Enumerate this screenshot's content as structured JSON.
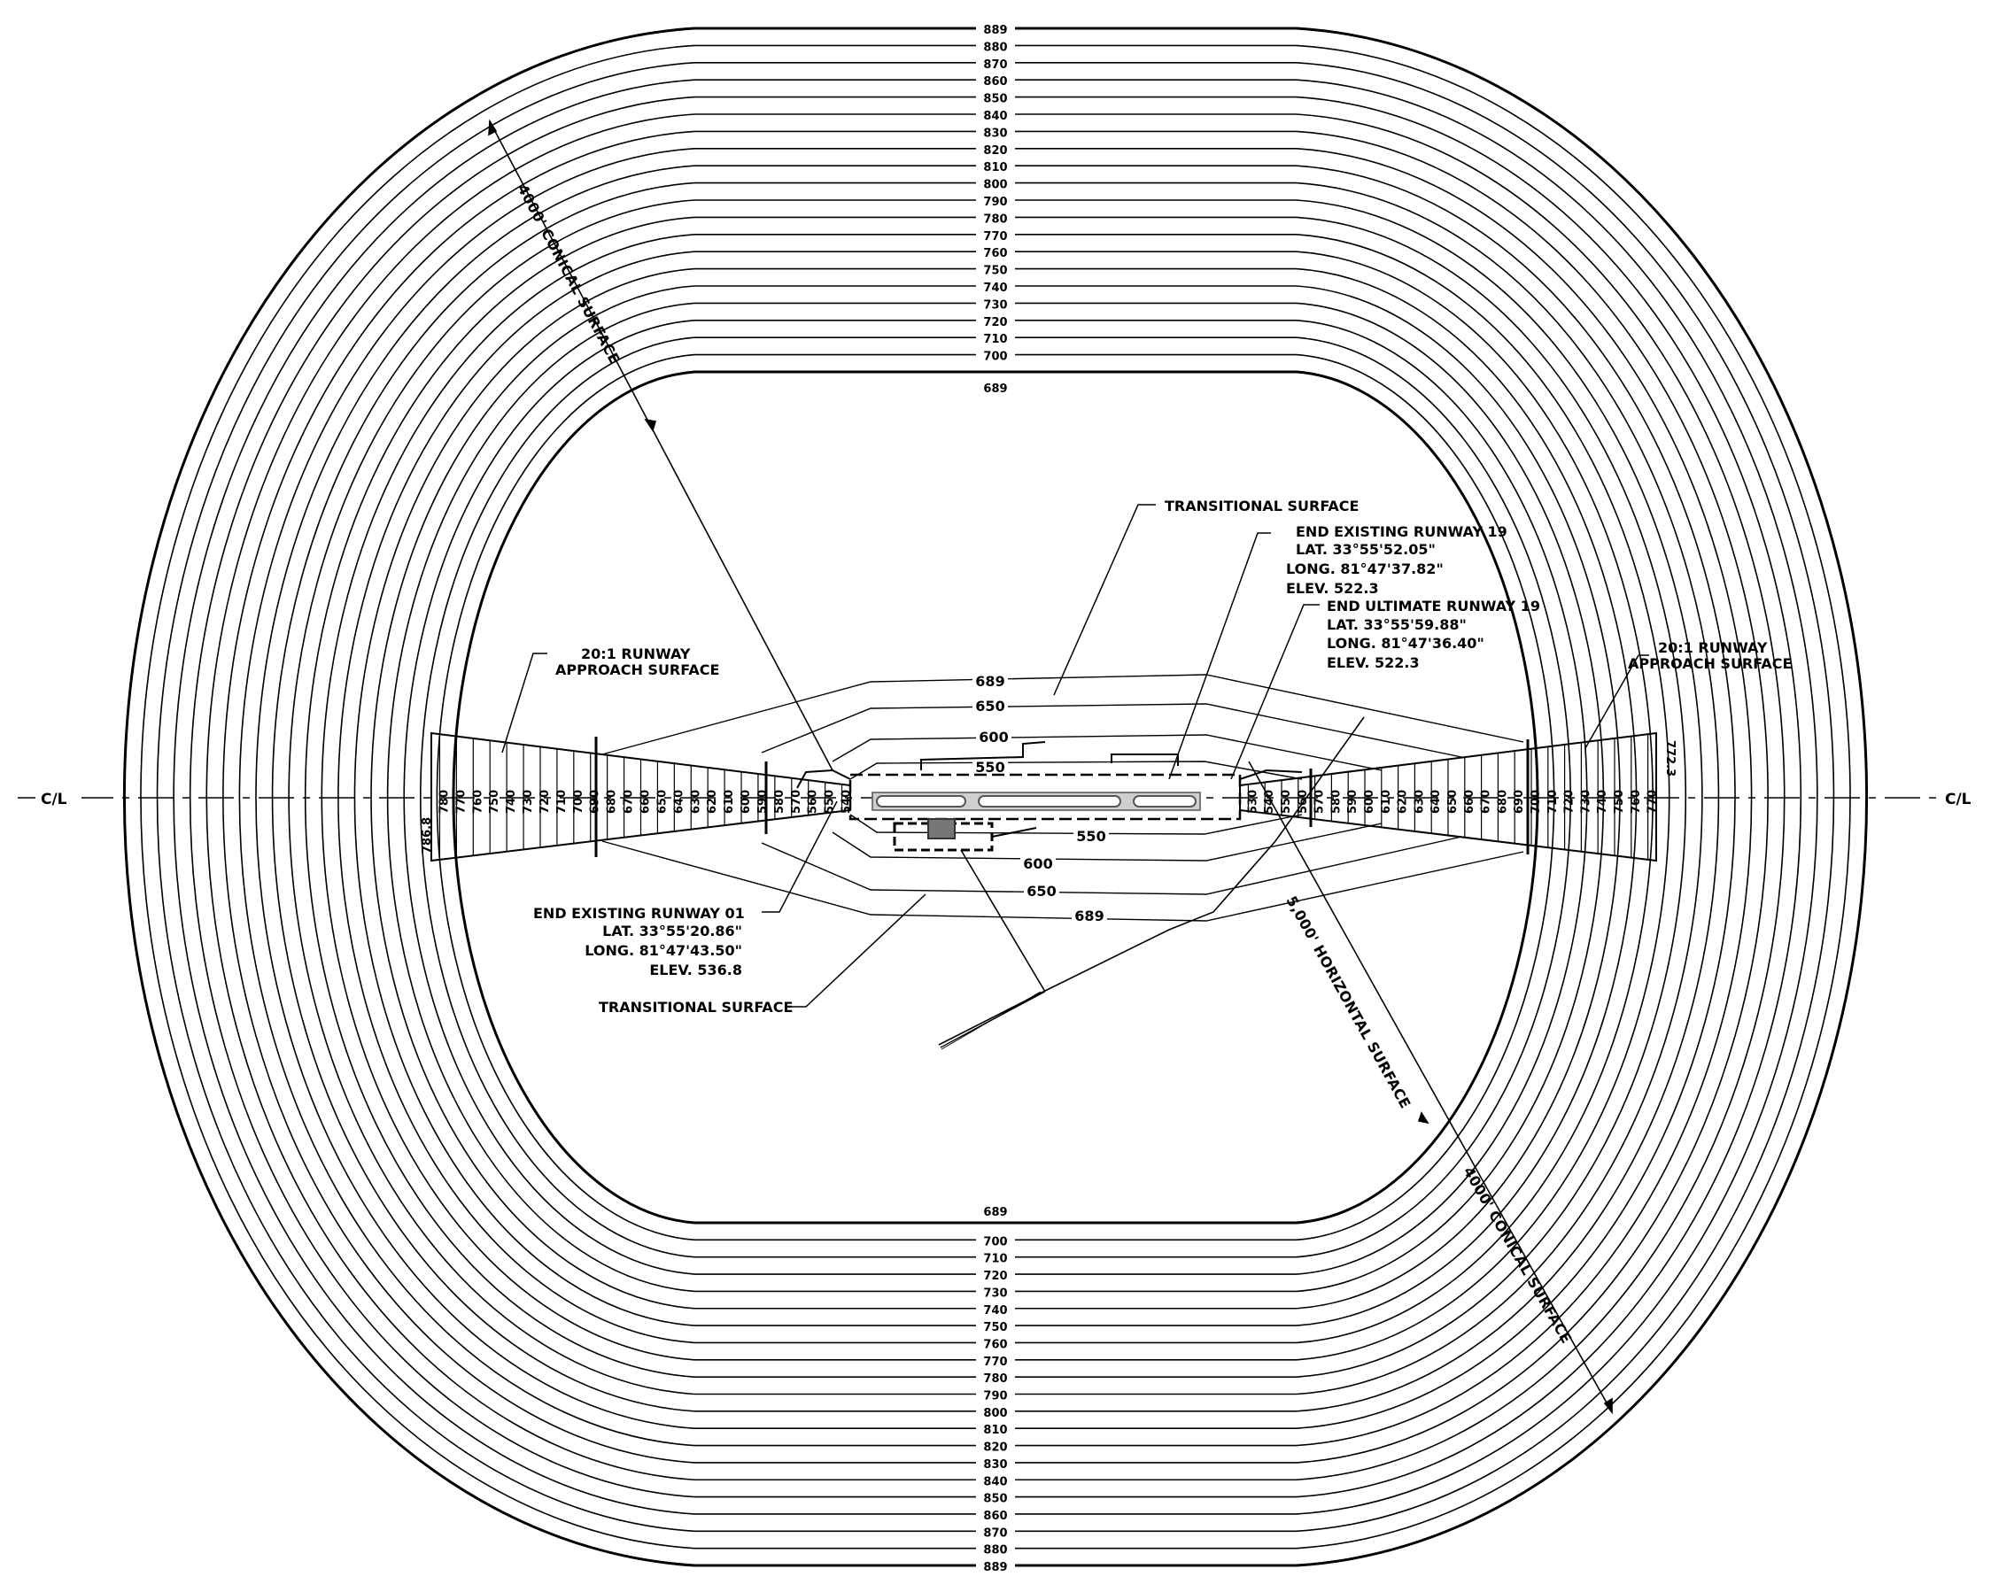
{
  "conical": {
    "outer": "889",
    "inner": "689",
    "contours": [
      "880",
      "870",
      "860",
      "850",
      "840",
      "830",
      "820",
      "810",
      "800",
      "790",
      "780",
      "770",
      "760",
      "750",
      "740",
      "730",
      "720",
      "710",
      "700"
    ]
  },
  "centerline": {
    "left": "C/L",
    "right": "C/L"
  },
  "dimensions": {
    "conical_nw": "4000' CONICAL SURFACE",
    "conical_se": "4000' CONICAL SURFACE",
    "horizontal": "5,000' HORIZONTAL SURFACE"
  },
  "transitional_contours": [
    "689",
    "650",
    "600",
    "550"
  ],
  "transitional_contours_south": [
    "550",
    "600",
    "650",
    "689"
  ],
  "approach_left": {
    "label_line1": "20:1 RUNWAY",
    "label_line2": "APPROACH SURFACE",
    "end_elev": "786.8",
    "ticks": [
      "780",
      "770",
      "760",
      "750",
      "740",
      "730",
      "720",
      "710",
      "700",
      "690",
      "680",
      "670",
      "660",
      "650",
      "640",
      "630",
      "620",
      "610",
      "600",
      "590",
      "580",
      "570",
      "560",
      "550",
      "540"
    ]
  },
  "approach_right": {
    "label_line1": "20:1 RUNWAY",
    "label_line2": "APPROACH SURFACE",
    "end_elev": "772.3",
    "ticks": [
      "530",
      "540",
      "550",
      "560",
      "570",
      "580",
      "590",
      "600",
      "610",
      "620",
      "630",
      "640",
      "650",
      "660",
      "670",
      "680",
      "690",
      "700",
      "710",
      "720",
      "730",
      "740",
      "750",
      "760",
      "770"
    ]
  },
  "transitional_label_n": "TRANSITIONAL SURFACE",
  "transitional_label_s": "TRANSITIONAL SURFACE",
  "runway19_existing": {
    "title": "END EXISTING RUNWAY 19",
    "lat": "LAT. 33°55'52.05\"",
    "long": "LONG. 81°47'37.82\"",
    "elev": "ELEV. 522.3"
  },
  "runway19_ultimate": {
    "title": "END ULTIMATE RUNWAY 19",
    "lat": "LAT. 33°55'59.88\"",
    "long": "LONG. 81°47'36.40\"",
    "elev": "ELEV. 522.3"
  },
  "runway01_existing": {
    "title": "END EXISTING RUNWAY 01",
    "lat": "LAT. 33°55'20.86\"",
    "long": "LONG. 81°47'43.50\"",
    "elev": "ELEV. 536.8"
  }
}
